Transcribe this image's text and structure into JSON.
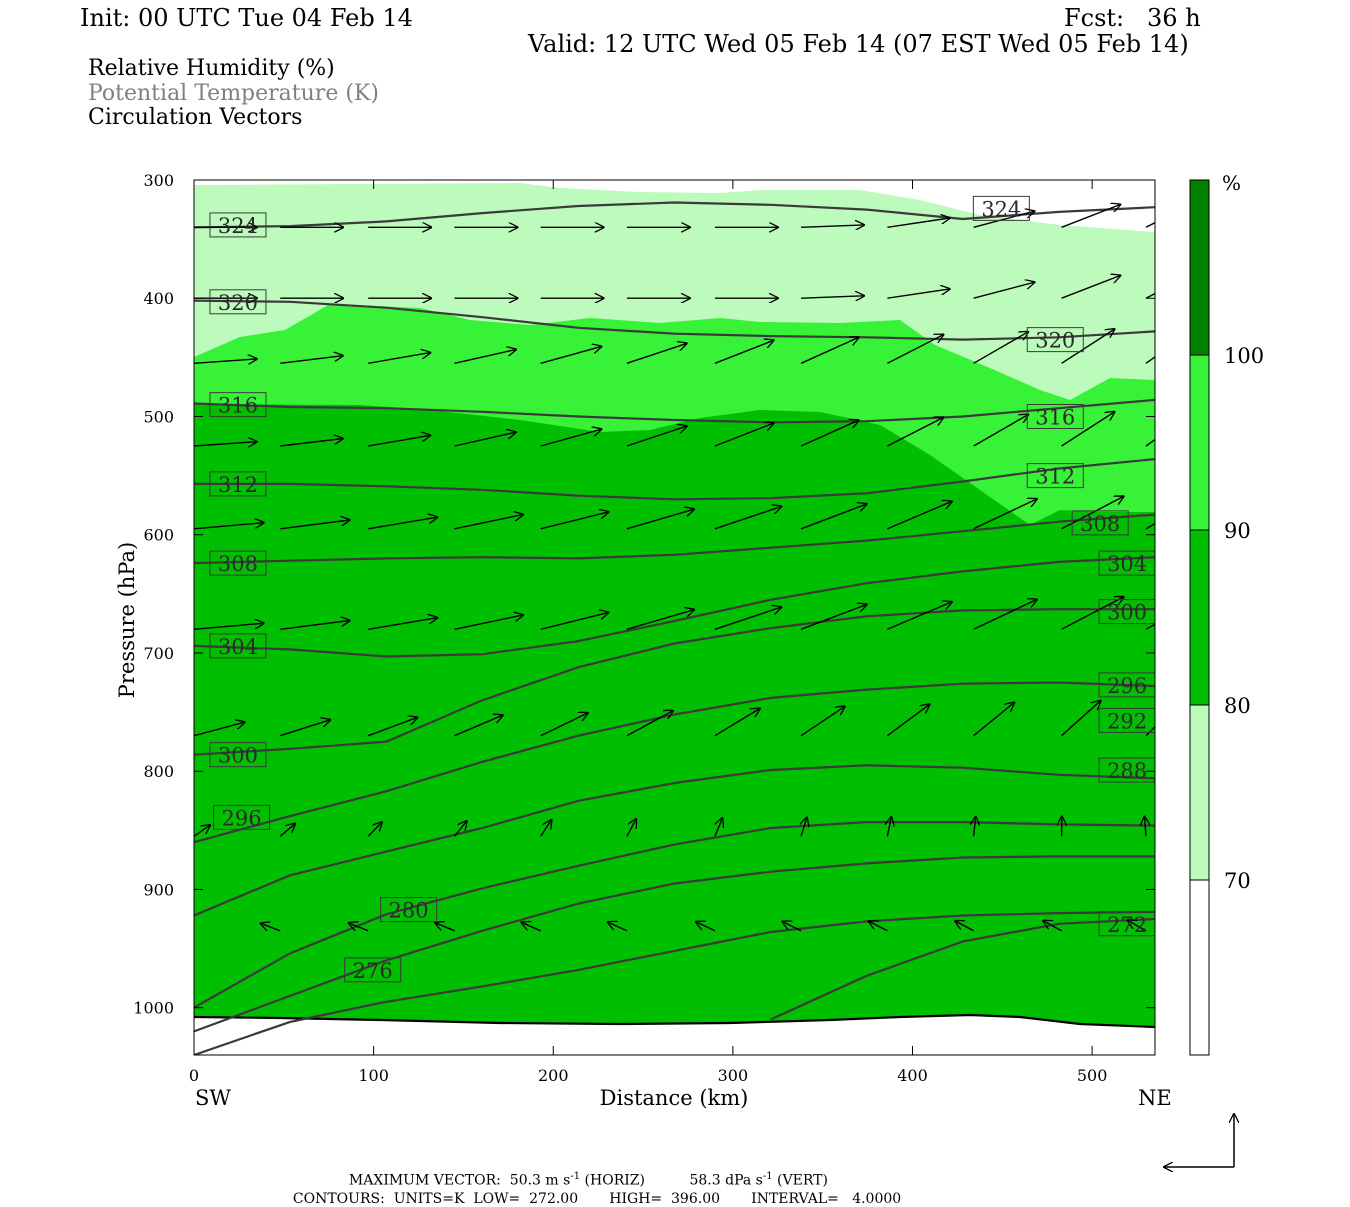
{
  "header": {
    "init": "Init: 00 UTC Tue 04 Feb 14",
    "fcst": "Fcst:   36 h",
    "valid": "Valid: 12 UTC Wed 05 Feb 14 (07 EST Wed 05 Feb 14)"
  },
  "legend_lines": [
    {
      "text": "Relative Humidity (%)",
      "color": "#000000"
    },
    {
      "text": "Potential Temperature (K)",
      "color": "#808080"
    },
    {
      "text": "Circulation Vectors",
      "color": "#000000"
    }
  ],
  "chart_data": {
    "type": "cross-section",
    "xlabel": "Distance (km)",
    "ylabel": "Pressure (hPa)",
    "x_ticks": [
      "0",
      "100",
      "200",
      "300",
      "400",
      "500"
    ],
    "y_ticks": [
      "300",
      "400",
      "500",
      "600",
      "700",
      "800",
      "900",
      "1000"
    ],
    "xlim": [
      0,
      535
    ],
    "ylim": [
      300,
      1040
    ],
    "endpoints": {
      "left": "SW",
      "right": "NE"
    },
    "colorbar": {
      "unit": "%",
      "levels": [
        "100",
        "90",
        "80",
        "70"
      ],
      "colors": [
        "#007f00",
        "#38f238",
        "#00be00",
        "#bdfbbd",
        "#ffffff"
      ]
    },
    "rh_fill_colors": {
      "rh_70_80": "#bdfbbd",
      "rh_80_90": "#38f238",
      "rh_90_100": "#00be00"
    },
    "theta_contours": [
      {
        "label": "324",
        "pressure": [
          340,
          339,
          335,
          328,
          322,
          319,
          321,
          325,
          333,
          327,
          323
        ],
        "label_at": [
          [
            10,
            338
          ],
          [
            435,
            324
          ]
        ]
      },
      {
        "label": "320",
        "pressure": [
          402,
          403,
          408,
          416,
          425,
          430,
          432,
          433,
          435,
          433,
          428
        ],
        "label_at": [
          [
            10,
            403
          ],
          [
            465,
            435
          ]
        ]
      },
      {
        "label": "316",
        "pressure": [
          489,
          492,
          493,
          496,
          500,
          503,
          505,
          504,
          500,
          493,
          486
        ],
        "label_at": [
          [
            10,
            490
          ],
          [
            465,
            500
          ]
        ]
      },
      {
        "label": "312",
        "pressure": [
          557,
          557,
          559,
          562,
          567,
          570,
          569,
          565,
          555,
          544,
          536
        ],
        "label_at": [
          [
            10,
            557
          ],
          [
            465,
            550
          ]
        ]
      },
      {
        "label": "308",
        "pressure": [
          624,
          622,
          620,
          619,
          620,
          617,
          611,
          605,
          597,
          589,
          583
        ],
        "label_at": [
          [
            10,
            624
          ],
          [
            490,
            590
          ]
        ]
      },
      {
        "label": "304",
        "pressure": [
          694,
          697,
          703,
          701,
          690,
          673,
          655,
          641,
          631,
          623,
          619
        ],
        "label_at": [
          [
            10,
            694
          ],
          [
            505,
            624
          ]
        ]
      },
      {
        "label": "300",
        "pressure": [
          786,
          781,
          775,
          740,
          712,
          692,
          679,
          669,
          664,
          663,
          663
        ],
        "label_at": [
          [
            10,
            786
          ],
          [
            505,
            665
          ]
        ]
      },
      {
        "label": "296",
        "pressure": [
          860,
          838,
          817,
          792,
          770,
          752,
          738,
          731,
          726,
          725,
          728
        ],
        "label_at": [
          [
            12,
            839
          ],
          [
            505,
            727
          ]
        ]
      },
      {
        "label": "292",
        "pressure": [
          922,
          888,
          868,
          848,
          825,
          810,
          799,
          795,
          797,
          803,
          806
        ],
        "label_at": [
          [
            505,
            757
          ]
        ]
      },
      {
        "label": "288",
        "pressure": [
          1000,
          954,
          921,
          899,
          880,
          862,
          848,
          843,
          843,
          845,
          846
        ],
        "label_at": [
          [
            505,
            799
          ]
        ]
      },
      {
        "label": "280",
        "pressure": [
          1020,
          990,
          960,
          935,
          912,
          895,
          885,
          878,
          873,
          872,
          872
        ],
        "label_at": [
          [
            105,
            917
          ]
        ]
      },
      {
        "label": "276",
        "pressure": [
          1040,
          1012,
          995,
          982,
          968,
          952,
          936,
          927,
          922,
          920,
          919
        ],
        "label_at": [
          [
            85,
            968
          ]
        ]
      },
      {
        "label": "272",
        "pressure": [
          null,
          null,
          null,
          null,
          null,
          null,
          1010,
          973,
          944,
          929,
          925
        ],
        "label_at": [
          [
            505,
            929
          ]
        ]
      }
    ],
    "max_vector": {
      "label": "MAXIMUM VECTOR:",
      "horiz": "50.3 m s",
      "horiz_unit": "(HORIZ)",
      "vert": "58.3 dPa s",
      "vert_unit": "(VERT)",
      "exponent": "-1"
    },
    "contours_info": {
      "label": "CONTOURS:",
      "units": "UNITS=K",
      "low": "LOW=  272.00",
      "high": "HIGH=  396.00",
      "interval": "INTERVAL=   4.0000"
    }
  }
}
